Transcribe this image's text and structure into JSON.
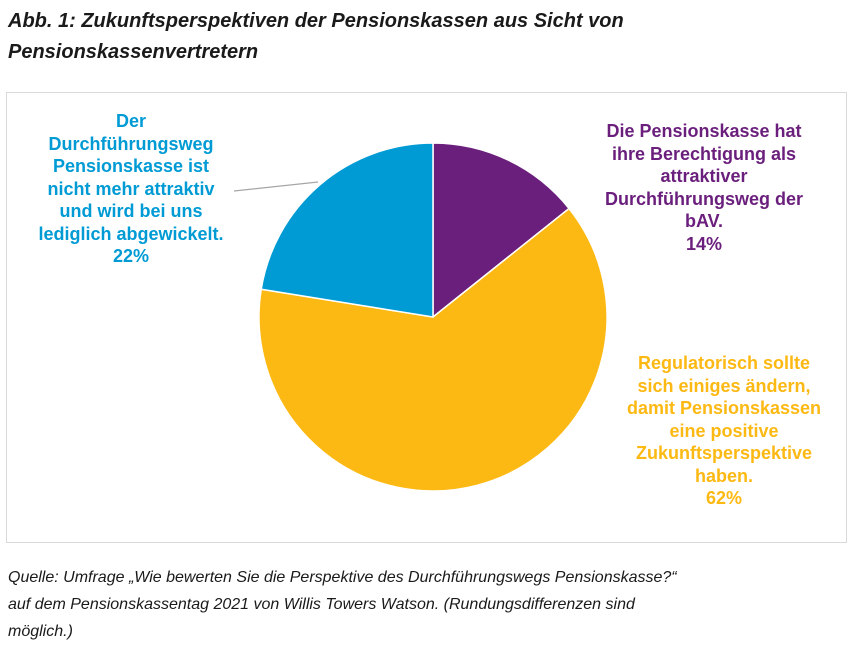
{
  "title": {
    "line1": "Abb. 1: Zukunftsperspektiven der Pensionskassen aus Sicht von",
    "line2": "Pensionskassenvertretern"
  },
  "chart_data": {
    "type": "pie",
    "slices": [
      {
        "label_lines": [
          "Die Pensionskasse hat",
          "ihre Berechtigung als",
          "attraktiver",
          "Durchführungsweg der",
          "bAV."
        ],
        "value": 14,
        "value_label": "14%",
        "color": "#6b1f7c"
      },
      {
        "label_lines": [
          "Regulatorisch sollte",
          "sich einiges ändern,",
          "damit Pensionskassen",
          "eine positive",
          "Zukunftsperspektive",
          "haben."
        ],
        "value": 62,
        "value_label": "62%",
        "color": "#fdb913"
      },
      {
        "label_lines": [
          "Der",
          "Durchführungsweg",
          "Pensionskasse ist",
          "nicht mehr attraktiv",
          "und wird bei uns",
          "lediglich abgewickelt."
        ],
        "value": 22,
        "value_label": "22%",
        "color": "#009bd4"
      }
    ],
    "start": "top",
    "direction": "clockwise"
  },
  "source": {
    "line1": "Quelle: Umfrage „Wie bewerten Sie die Perspektive des Durchführungswegs Pensionskasse?“",
    "line2": "auf dem Pensionskassentag 2021 von Willis Towers Watson. (Rundungsdifferenzen sind",
    "line3": "möglich.)"
  }
}
